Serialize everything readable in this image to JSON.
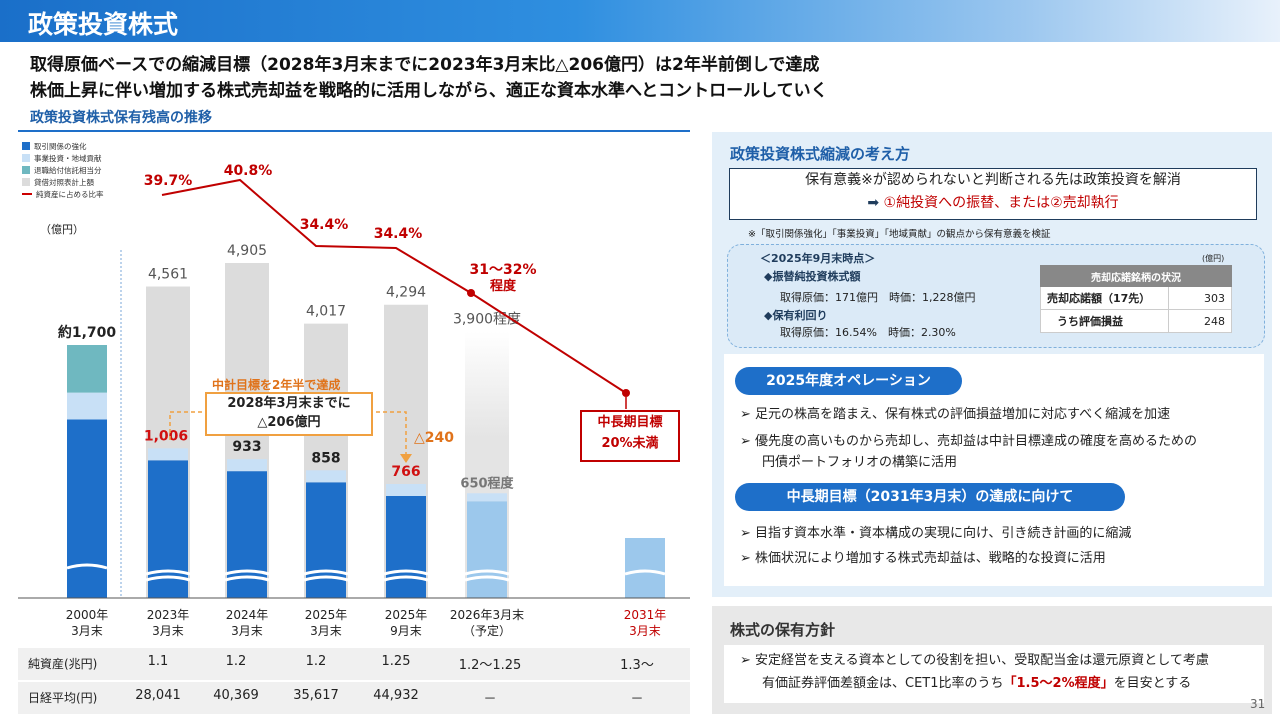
{
  "title": "政策投資株式",
  "headline1": "取得原価ベースでの縮減目標（2028年3月末までに2023年3月末比△206億円）は2年半前倒しで達成",
  "headline2": "株価上昇に伴い増加する株式売却益を戦略的に活用しながら、適正な資本水準へとコントロールしていく",
  "chart_title": "政策投資株式保有残高の推移",
  "legend": [
    "取引関係の強化",
    "事業投資・地域貢献",
    "退職給付信託相当分",
    "貸借対照表計上額",
    "純資産に占める比率"
  ],
  "unit": "（億円）",
  "colors": {
    "dark": "#1e6fc9",
    "light": "#c8e0f6",
    "teal": "#6fb8c0",
    "gray": "#dcdcdc",
    "red": "#c00000",
    "future": "#9cc8ec"
  },
  "chart_data": {
    "type": "bar",
    "categories": [
      "2000年3月末",
      "2023年3月末",
      "2024年3月末",
      "2025年3月末",
      "2025年9月末",
      "2026年3月末（予定）",
      "2031年3月末"
    ],
    "balance_sheet": [
      null,
      4561,
      4905,
      4017,
      4294,
      3900,
      null
    ],
    "balance_sheet_labels": [
      "",
      "4,561",
      "4,905",
      "4,017",
      "4,294",
      "3,900程度",
      ""
    ],
    "cost_basis": [
      1700,
      1006,
      933,
      858,
      766,
      650,
      null
    ],
    "cost_basis_labels": [
      "約1,700",
      "1,006",
      "933",
      "858",
      "766",
      "650程度",
      ""
    ],
    "ratio_pct": [
      "39.7%",
      "40.8%",
      "34.4%",
      "34.4%",
      "31〜32%程度",
      "中長期目標 20%未満"
    ],
    "ratio_labels": [
      "39.7%",
      "40.8%",
      "34.4%",
      "34.4%",
      "31〜32%",
      "程度"
    ]
  },
  "callout": {
    "top": "中計目標を2年半で達成",
    "box1": "2028年3月末までに",
    "box2": "△206億円",
    "delta": "△240"
  },
  "target_box": {
    "l1": "中長期目標",
    "l2": "20%未満"
  },
  "xlabels": [
    [
      "2000年",
      "3月末"
    ],
    [
      "2023年",
      "3月末"
    ],
    [
      "2024年",
      "3月末"
    ],
    [
      "2025年",
      "3月末"
    ],
    [
      "2025年",
      "9月末"
    ],
    [
      "2026年3月末",
      "（予定）"
    ],
    [
      "2031年",
      "3月末"
    ]
  ],
  "rows": [
    {
      "label": "純資産(兆円)",
      "values": [
        "1.1",
        "1.2",
        "1.2",
        "1.25",
        "1.2〜1.25",
        "1.3〜"
      ]
    },
    {
      "label": "日経平均(円)",
      "values": [
        "28,041",
        "40,369",
        "35,617",
        "44,932",
        "－",
        "－"
      ]
    }
  ],
  "right": {
    "sec1_title": "政策投資株式縮減の考え方",
    "box_line1": "保有意義※が認められないと判断される先は政策投資を解消",
    "box_line2": "①純投資への振替、または②売却執行",
    "note": "※「取引関係強化」「事業投資」「地域貢献」の観点から保有意義を検証",
    "point_title": "＜2025年9月末時点＞",
    "p1": "◆振替純投資株式額",
    "p1v": "取得原価：171億円　時価：1,228億円",
    "p2": "◆保有利回り",
    "p2v": "取得原価：16.54%　時価：2.30%",
    "table_unit": "(億円)",
    "table_head": "売却応諾銘柄の状況",
    "t_r1": "売却応諾額（17先）",
    "t_r1v": "303",
    "t_r2": "うち評価損益",
    "t_r2v": "248",
    "pill1": "2025年度オペレーション",
    "b1": "足元の株高を踏まえ、保有株式の評価損益増加に対応すべく縮減を加速",
    "b2a": "優先度の高いものから売却し、売却益は中計目標達成の確度を高めるための",
    "b2b": "円債ポートフォリオの構築に活用",
    "pill2": "中長期目標（2031年3月末）の達成に向けて",
    "b3": "目指す資本水準・資本構成の実現に向け、引き続き計画的に縮減",
    "b4": "株価状況により増加する株式売却益は、戦略的な投資に活用",
    "sec2_title": "株式の保有方針",
    "b5a": "安定経営を支える資本としての役割を担い、受取配当金は還元原資として考慮",
    "b5b_pre": "有価証券評価差額金は、CET1比率のうち",
    "b5b_hl": "「1.5〜2%程度」",
    "b5b_post": "を目安とする"
  },
  "page_number": "31"
}
